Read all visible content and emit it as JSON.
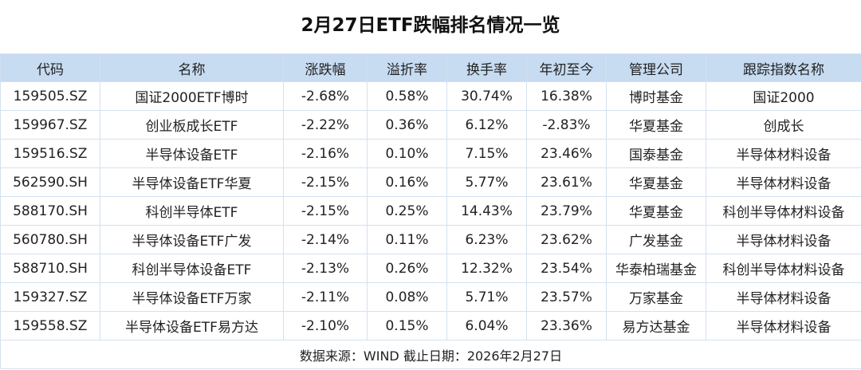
{
  "title": "2月27日ETF跌幅排名情况一览",
  "headers": [
    "代码",
    "名称",
    "涨跌幅",
    "溢折率",
    "换手率",
    "年初至今",
    "管理公司",
    "跟踪指数名称"
  ],
  "rows": [
    [
      "159505.SZ",
      "国证2000ETF博时",
      "-2.68%",
      "0.58%",
      "30.74%",
      "16.38%",
      "博时基金",
      "国证2000"
    ],
    [
      "159967.SZ",
      "创业板成长ETF",
      "-2.22%",
      "0.36%",
      "6.12%",
      "-2.83%",
      "华夏基金",
      "创成长"
    ],
    [
      "159516.SZ",
      "半导体设备ETF",
      "-2.16%",
      "0.10%",
      "7.15%",
      "23.46%",
      "国泰基金",
      "半导体材料设备"
    ],
    [
      "562590.SH",
      "半导体设备ETF华夏",
      "-2.15%",
      "0.16%",
      "5.77%",
      "23.61%",
      "华夏基金",
      "半导体材料设备"
    ],
    [
      "588170.SH",
      "科创半导体ETF",
      "-2.15%",
      "0.25%",
      "14.43%",
      "23.79%",
      "华夏基金",
      "科创半导体材料设备"
    ],
    [
      "560780.SH",
      "半导体设备ETF广发",
      "-2.14%",
      "0.11%",
      "6.23%",
      "23.62%",
      "广发基金",
      "半导体材料设备"
    ],
    [
      "588710.SH",
      "科创半导体设备ETF",
      "-2.13%",
      "0.26%",
      "12.32%",
      "23.54%",
      "华泰柏瑞基金",
      "科创半导体材料设备"
    ],
    [
      "159327.SZ",
      "半导体设备ETF万家",
      "-2.11%",
      "0.08%",
      "5.71%",
      "23.57%",
      "万家基金",
      "半导体材料设备"
    ],
    [
      "159558.SZ",
      "半导体设备ETF易方达",
      "-2.10%",
      "0.15%",
      "6.04%",
      "23.36%",
      "易方达基金",
      "半导体材料设备"
    ]
  ],
  "footer": "数据来源：WIND 截止日期：2026年2月27日",
  "colors": {
    "header_bg": "#c7dbf1",
    "border": "#d3e1f0"
  }
}
